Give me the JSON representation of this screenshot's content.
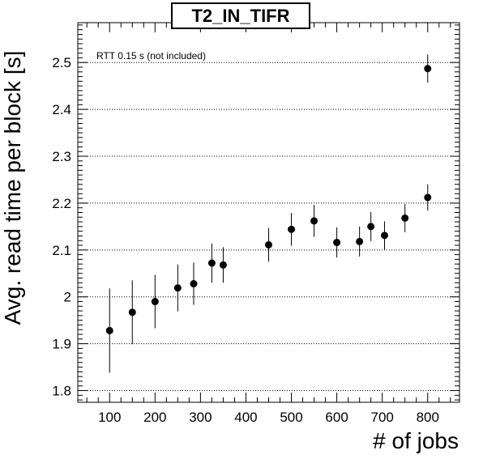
{
  "chart_data": {
    "type": "scatter",
    "title": "T2_IN_TIFR",
    "xlabel": "# of jobs",
    "ylabel": "Avg. read time per block [s]",
    "annotation": "RTT 0.15 s (not included)",
    "xlim": [
      30,
      870
    ],
    "ylim": [
      1.775,
      2.585
    ],
    "xticks": [
      100,
      200,
      300,
      400,
      500,
      600,
      700,
      800
    ],
    "yticks": [
      1.8,
      1.9,
      2.0,
      2.1,
      2.2,
      2.3,
      2.4,
      2.5
    ],
    "ytick_labels": [
      "1.8",
      "1.9",
      "2",
      "2.1",
      "2.2",
      "2.3",
      "2.4",
      "2.5"
    ],
    "grid": "horizontal dotted",
    "marker_color": "#000000",
    "series": [
      {
        "x": [
          100,
          150,
          200,
          250,
          285,
          325,
          350,
          450,
          500,
          550,
          600,
          650,
          675,
          705,
          750,
          800,
          800
        ],
        "y": [
          1.928,
          1.967,
          1.99,
          2.019,
          2.028,
          2.072,
          2.068,
          2.111,
          2.144,
          2.162,
          2.116,
          2.118,
          2.15,
          2.131,
          2.168,
          2.212,
          2.487
        ],
        "err": [
          0.09,
          0.068,
          0.057,
          0.05,
          0.045,
          0.042,
          0.038,
          0.036,
          0.035,
          0.034,
          0.032,
          0.032,
          0.031,
          0.03,
          0.03,
          0.028,
          0.03
        ]
      }
    ]
  }
}
